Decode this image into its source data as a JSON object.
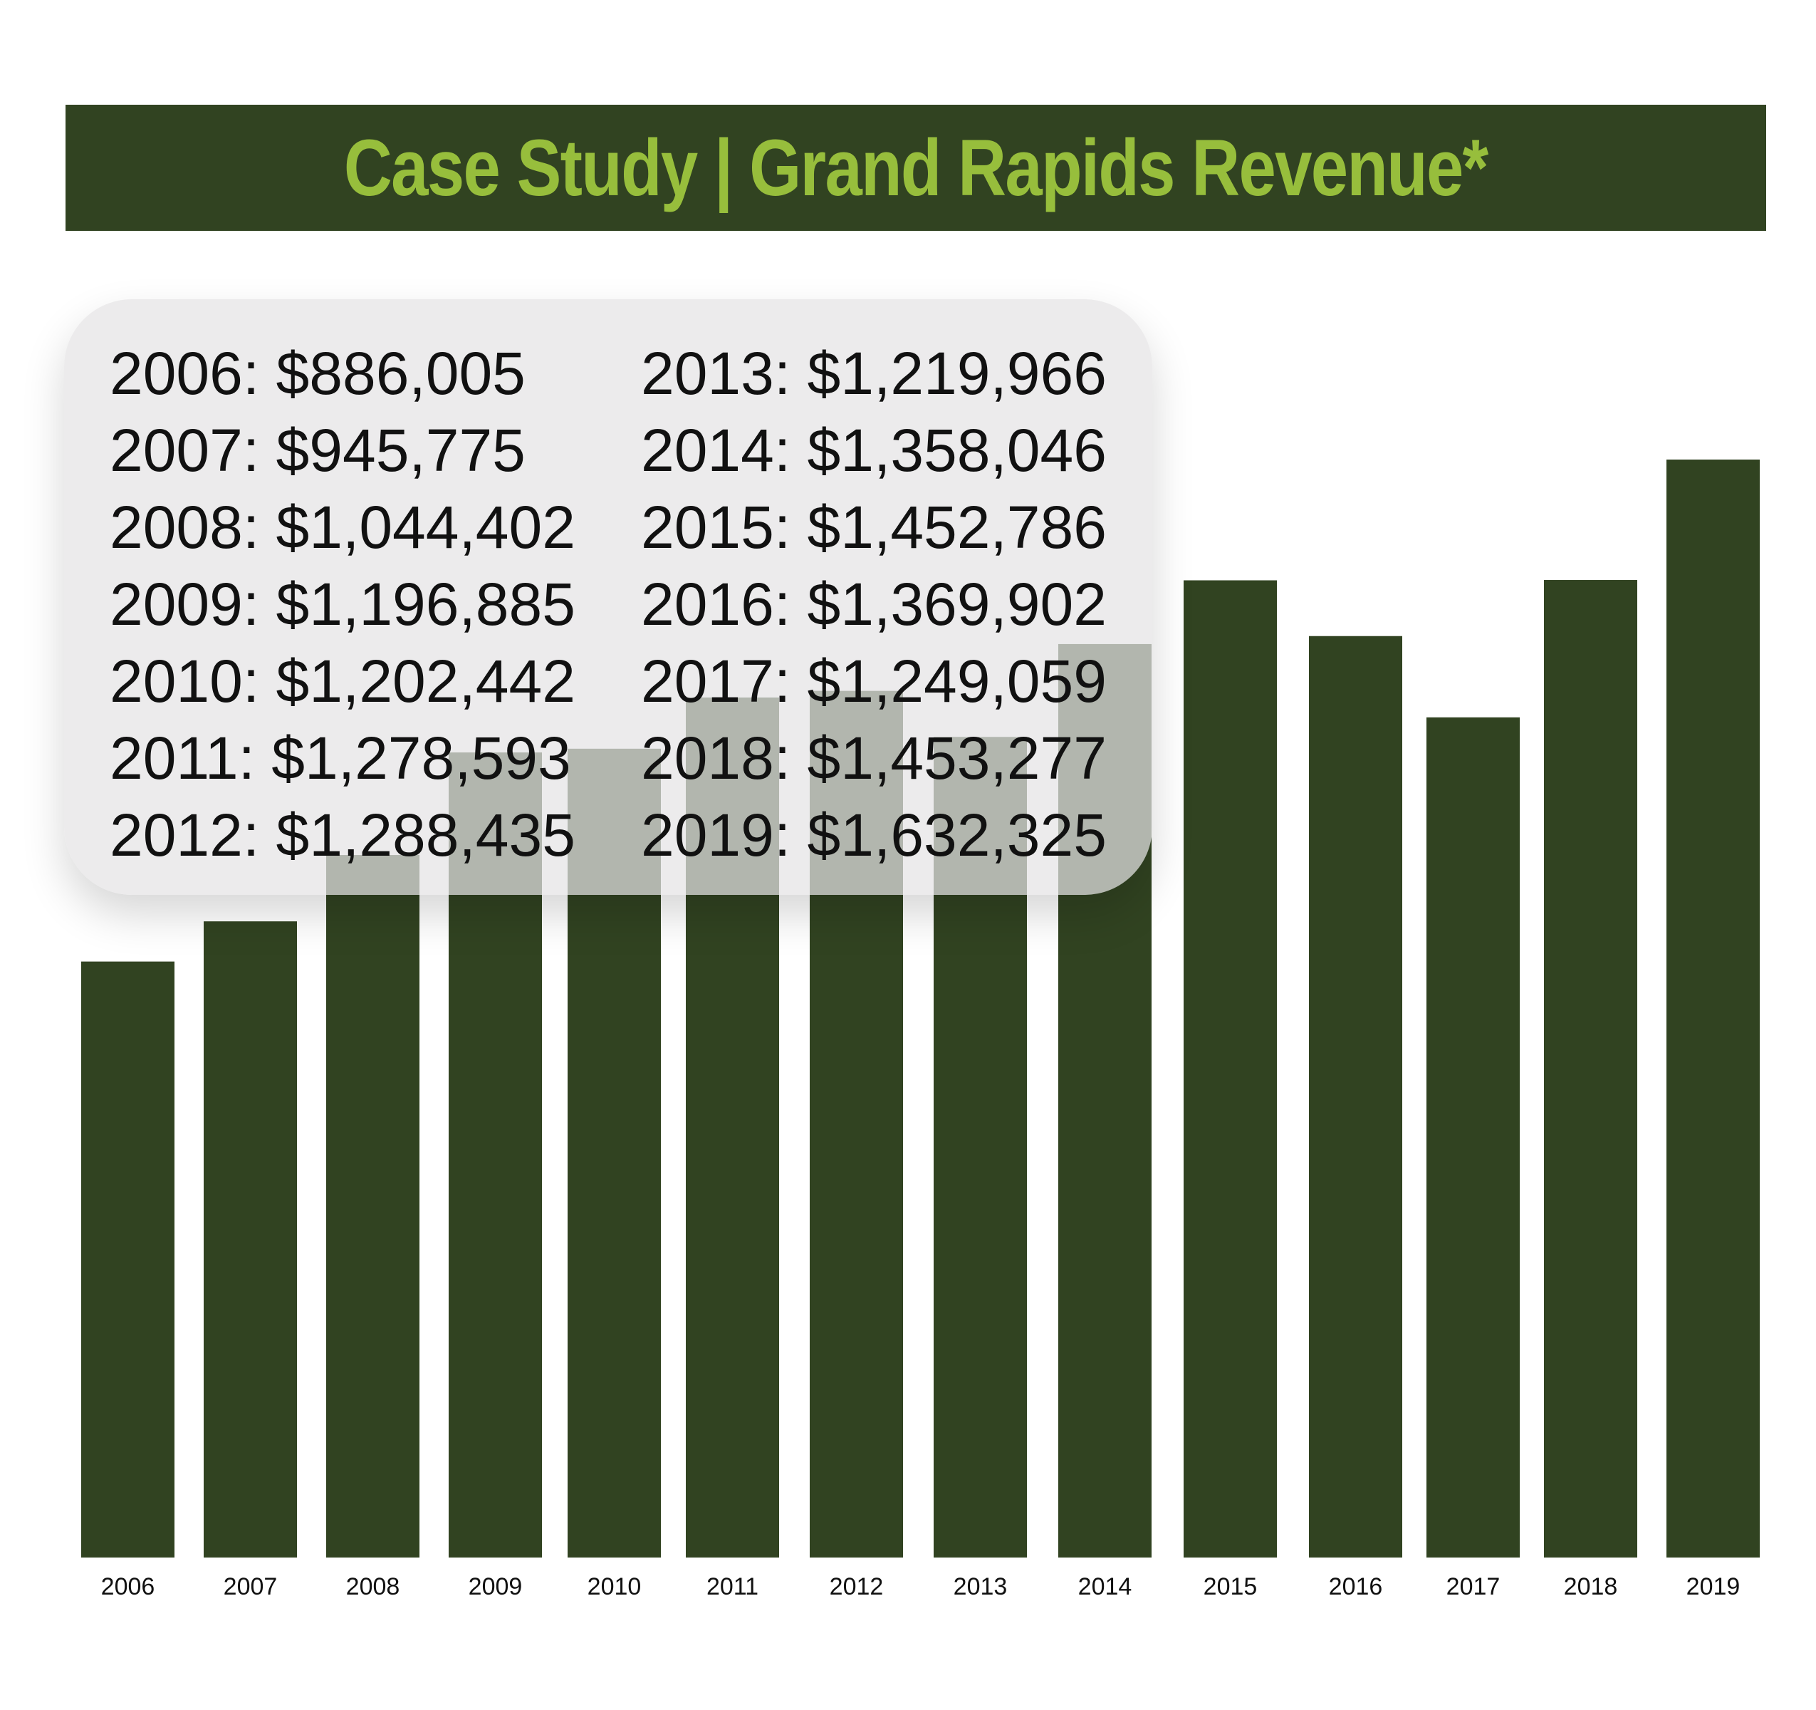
{
  "title": "Case Study | Grand Rapids Revenue*",
  "colors": {
    "banner_bg": "#314321",
    "title_text": "#97be3c",
    "bar": "#314321",
    "panel_bg": "#e4e3e5"
  },
  "data_panel": {
    "left_column": [
      "2006: $886,005",
      "2007: $945,775",
      "2008: $1,044,402",
      "2009: $1,196,885",
      "2010: $1,202,442",
      "2011: $1,278,593",
      "2012: $1,288,435"
    ],
    "right_column": [
      "2013: $1,219,966",
      "2014: $1,358,046",
      "2015: $1,452,786",
      "2016: $1,369,902",
      "2017: $1,249,059",
      "2018: $1,453,277",
      "2019: $1,632,325"
    ]
  },
  "chart_data": {
    "type": "bar",
    "title": "Case Study | Grand Rapids Revenue*",
    "xlabel": "",
    "ylabel": "",
    "categories": [
      "2006",
      "2007",
      "2008",
      "2009",
      "2010",
      "2011",
      "2012",
      "2013",
      "2014",
      "2015",
      "2016",
      "2017",
      "2018",
      "2019"
    ],
    "values": [
      886005,
      945775,
      1044402,
      1196885,
      1202442,
      1278593,
      1288435,
      1219966,
      1358046,
      1452786,
      1369902,
      1249059,
      1453277,
      1632325
    ],
    "ylim": [
      0,
      1632325
    ],
    "grid": false,
    "legend": "none"
  }
}
